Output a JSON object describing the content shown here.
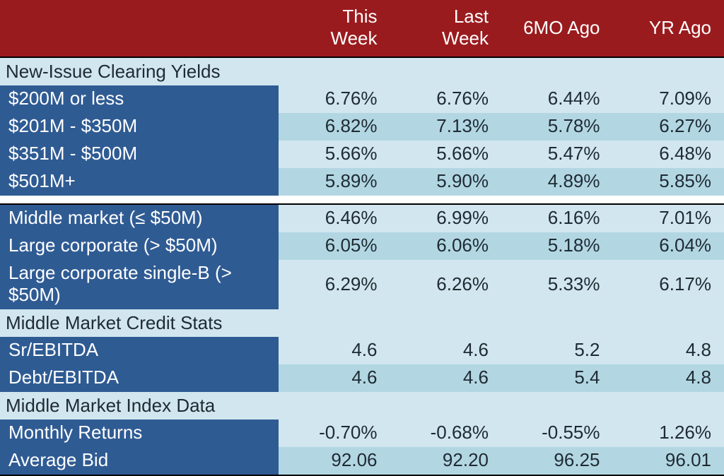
{
  "colors": {
    "header_bg": "#9a1b1e",
    "header_fg": "#ffffff",
    "label_bg": "#2f5b93",
    "label_fg": "#ffffff",
    "section_bg": "#d1e6ee",
    "section_fg": "#1f2a33",
    "alt_bg_even": "#d1e6ee",
    "alt_bg_odd": "#b2d7e3",
    "data_fg": "#1f2a33",
    "spacer_bg": "#ffffff"
  },
  "columns": [
    "This Week",
    "Last Week",
    "6MO Ago",
    "YR Ago"
  ],
  "sections": [
    {
      "title": "New-Issue Clearing Yields",
      "groups": [
        {
          "rows": [
            {
              "label": "$200M or less",
              "vals": [
                "6.76%",
                "6.76%",
                "6.44%",
                "7.09%"
              ]
            },
            {
              "label": "$201M - $350M",
              "vals": [
                "6.82%",
                "7.13%",
                "5.78%",
                "6.27%"
              ]
            },
            {
              "label": "$351M - $500M",
              "vals": [
                "5.66%",
                "5.66%",
                "5.47%",
                "6.48%"
              ]
            },
            {
              "label": "$501M+",
              "vals": [
                "5.89%",
                "5.90%",
                "4.89%",
                "5.85%"
              ]
            }
          ]
        },
        {
          "rows": [
            {
              "label": "Middle market (≤ $50M)",
              "vals": [
                "6.46%",
                "6.99%",
                "6.16%",
                "7.01%"
              ]
            },
            {
              "label": "Large corporate (> $50M)",
              "vals": [
                "6.05%",
                "6.06%",
                "5.18%",
                "6.04%"
              ]
            },
            {
              "label": "Large corporate single-B (> $50M)",
              "vals": [
                "6.29%",
                "6.26%",
                "5.33%",
                "6.17%"
              ]
            }
          ]
        }
      ]
    },
    {
      "title": "Middle Market Credit Stats",
      "groups": [
        {
          "rows": [
            {
              "label": "Sr/EBITDA",
              "vals": [
                "4.6",
                "4.6",
                "5.2",
                "4.8"
              ]
            },
            {
              "label": "Debt/EBITDA",
              "vals": [
                "4.6",
                "4.6",
                "5.4",
                "4.8"
              ]
            }
          ]
        }
      ]
    },
    {
      "title": "Middle Market Index Data",
      "groups": [
        {
          "rows": [
            {
              "label": "Monthly Returns",
              "vals": [
                "-0.70%",
                "-0.68%",
                "-0.55%",
                "1.26%"
              ]
            },
            {
              "label": "Average Bid",
              "vals": [
                "92.06",
                "92.20",
                "96.25",
                "96.01"
              ]
            }
          ]
        }
      ]
    }
  ]
}
